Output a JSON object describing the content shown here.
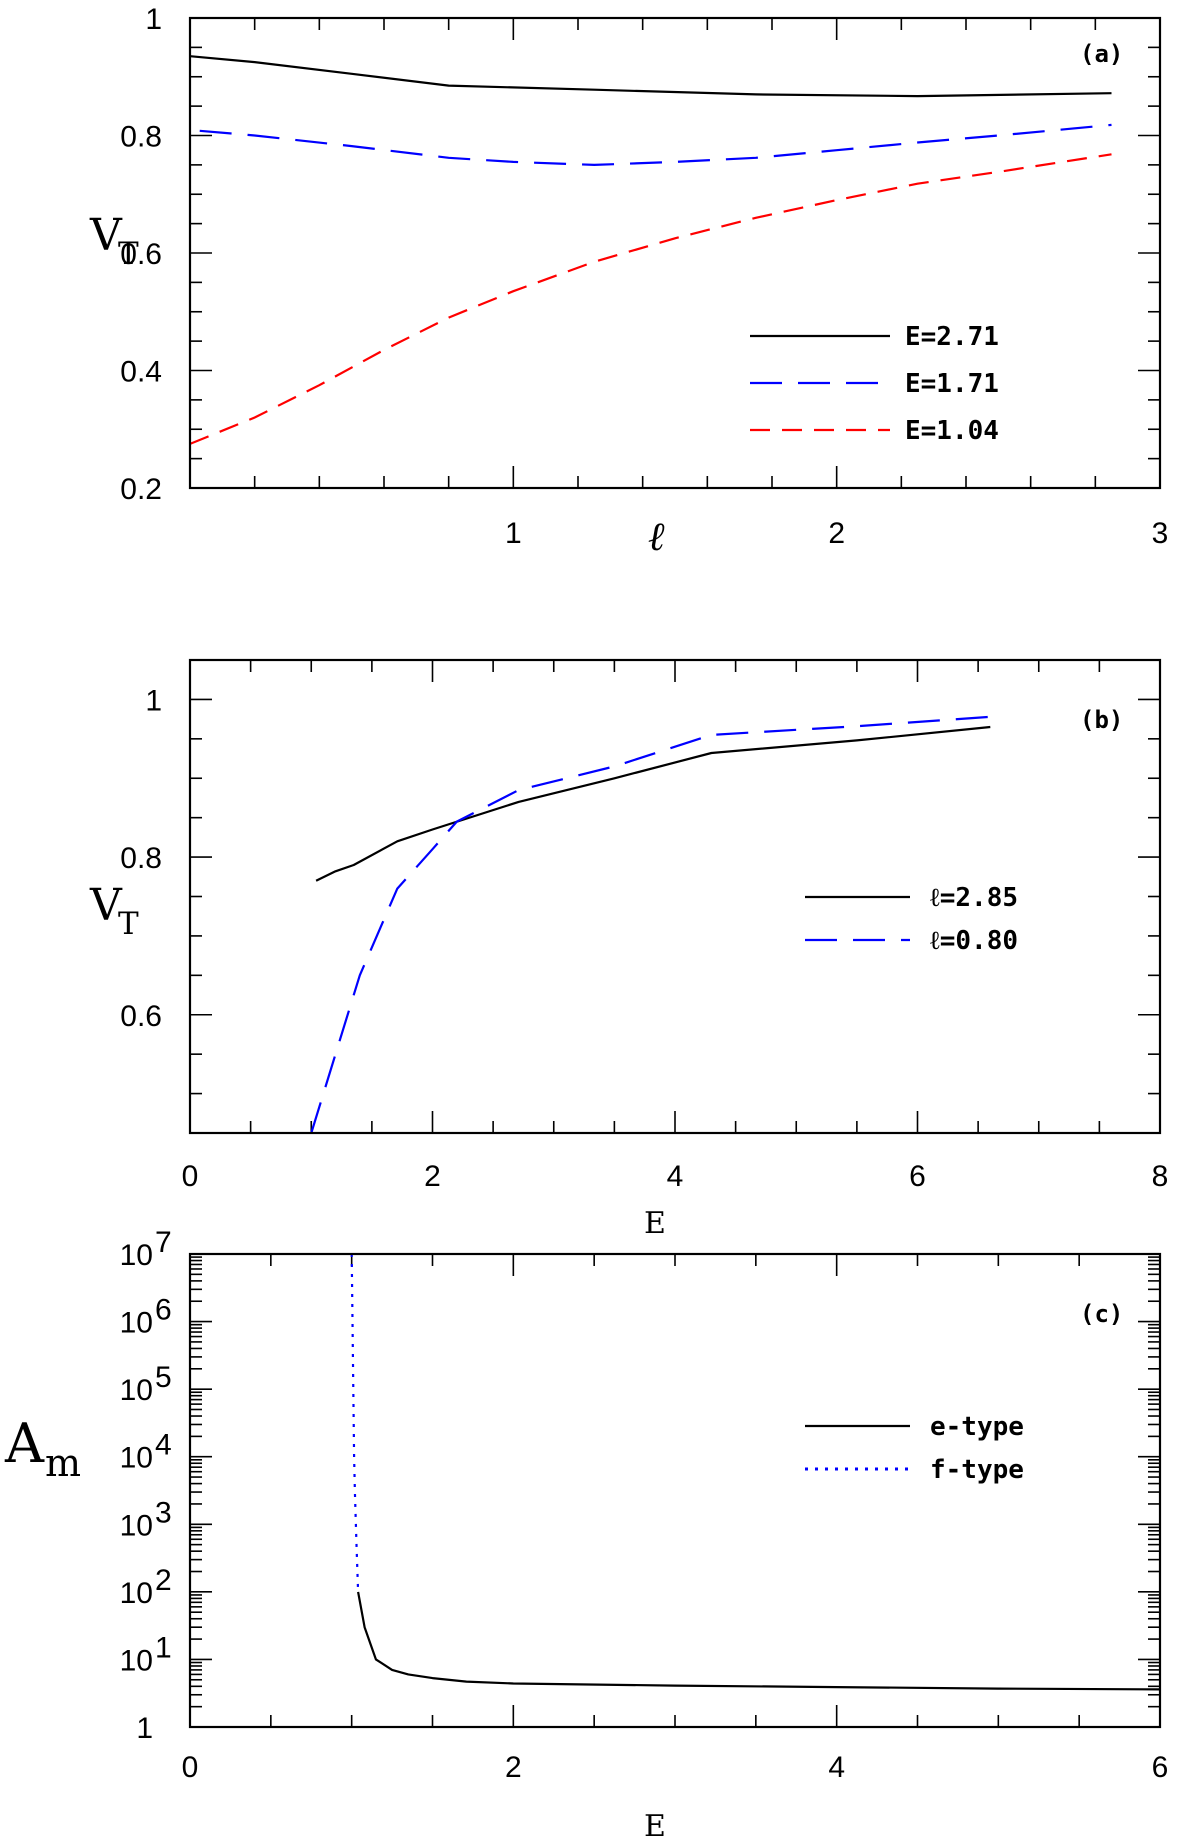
{
  "chart_data": [
    {
      "panel": "a",
      "type": "line",
      "panel_label": "(a)",
      "xlabel": "ℓ",
      "ylabel": "V",
      "ylabel_sub": "T",
      "xlim": [
        0,
        3
      ],
      "ylim": [
        0.2,
        1.0
      ],
      "xticks": [
        {
          "v": 1,
          "label": "1"
        },
        {
          "v": 2,
          "label": "2"
        },
        {
          "v": 3,
          "label": "3"
        }
      ],
      "yticks": [
        {
          "v": 0.2,
          "label": "0.2"
        },
        {
          "v": 0.4,
          "label": "0.4"
        },
        {
          "v": 0.6,
          "label": "0.6"
        },
        {
          "v": 0.8,
          "label": "0.8"
        },
        {
          "v": 1.0,
          "label": "1"
        }
      ],
      "legend_position": "lower-right",
      "series": [
        {
          "name": "E=2.71",
          "color": "#000000",
          "style": "solid",
          "x": [
            0,
            0.2,
            0.5,
            0.8,
            1.25,
            1.75,
            2.25,
            2.85
          ],
          "y": [
            0.935,
            0.925,
            0.905,
            0.885,
            0.878,
            0.87,
            0.867,
            0.872
          ]
        },
        {
          "name": "E=1.71",
          "color": "#0000ff",
          "style": "dash-long",
          "x": [
            0.03,
            0.2,
            0.5,
            0.8,
            1.0,
            1.25,
            1.5,
            1.75,
            2.0,
            2.25,
            2.5,
            2.85
          ],
          "y": [
            0.808,
            0.8,
            0.782,
            0.762,
            0.755,
            0.75,
            0.755,
            0.762,
            0.775,
            0.788,
            0.8,
            0.818
          ]
        },
        {
          "name": "E=1.04",
          "color": "#ff0000",
          "style": "dash-short",
          "x": [
            0,
            0.2,
            0.4,
            0.6,
            0.8,
            1.0,
            1.25,
            1.5,
            1.75,
            2.0,
            2.25,
            2.5,
            2.85
          ],
          "y": [
            0.275,
            0.32,
            0.375,
            0.435,
            0.49,
            0.535,
            0.585,
            0.625,
            0.66,
            0.69,
            0.718,
            0.738,
            0.768
          ]
        }
      ]
    },
    {
      "panel": "b",
      "type": "line",
      "panel_label": "(b)",
      "xlabel": "E",
      "ylabel": "V",
      "ylabel_sub": "T",
      "xlim": [
        0,
        8
      ],
      "ylim": [
        0.45,
        1.05
      ],
      "xticks": [
        {
          "v": 0,
          "label": "0"
        },
        {
          "v": 2,
          "label": "2"
        },
        {
          "v": 4,
          "label": "4"
        },
        {
          "v": 6,
          "label": "6"
        },
        {
          "v": 8,
          "label": "8"
        }
      ],
      "yticks": [
        {
          "v": 0.6,
          "label": "0.6"
        },
        {
          "v": 0.8,
          "label": "0.8"
        },
        {
          "v": 1.0,
          "label": "1"
        }
      ],
      "legend_position": "right",
      "series": [
        {
          "name": "ℓ=2.85",
          "color": "#000000",
          "style": "solid",
          "x": [
            1.04,
            1.2,
            1.35,
            1.71,
            2.0,
            2.71,
            3.5,
            4.3,
            5.5,
            6.6
          ],
          "y": [
            0.77,
            0.782,
            0.79,
            0.82,
            0.835,
            0.87,
            0.9,
            0.932,
            0.948,
            0.965
          ]
        },
        {
          "name": "ℓ=0.80",
          "color": "#0000ff",
          "style": "dash-long",
          "x": [
            1.0,
            1.2,
            1.4,
            1.71,
            2.0,
            2.2,
            2.71,
            3.5,
            4.3,
            5.5,
            6.6
          ],
          "y": [
            0.45,
            0.55,
            0.65,
            0.76,
            0.81,
            0.845,
            0.885,
            0.915,
            0.955,
            0.966,
            0.978
          ]
        }
      ]
    },
    {
      "panel": "c",
      "type": "line",
      "panel_label": "(c)",
      "xlabel": "E",
      "ylabel": "A",
      "ylabel_sub": "m",
      "xlim": [
        0,
        6
      ],
      "yscale": "log",
      "ylim": [
        1,
        10000000
      ],
      "xticks": [
        {
          "v": 0,
          "label": "0"
        },
        {
          "v": 2,
          "label": "2"
        },
        {
          "v": 4,
          "label": "4"
        },
        {
          "v": 6,
          "label": "6"
        }
      ],
      "yticks": [
        {
          "exp": 0,
          "base": "1",
          "sup": ""
        },
        {
          "exp": 1,
          "base": "10",
          "sup": "1"
        },
        {
          "exp": 2,
          "base": "10",
          "sup": "2"
        },
        {
          "exp": 3,
          "base": "10",
          "sup": "3"
        },
        {
          "exp": 4,
          "base": "10",
          "sup": "4"
        },
        {
          "exp": 5,
          "base": "10",
          "sup": "5"
        },
        {
          "exp": 6,
          "base": "10",
          "sup": "6"
        },
        {
          "exp": 7,
          "base": "10",
          "sup": "7"
        }
      ],
      "legend_position": "right",
      "series": [
        {
          "name": "e-type",
          "color": "#000000",
          "style": "solid",
          "x": [
            1.04,
            1.08,
            1.15,
            1.25,
            1.35,
            1.5,
            1.71,
            2.0,
            3.0,
            4.0,
            5.0,
            6.0
          ],
          "y": [
            100,
            30,
            10,
            7,
            6,
            5.3,
            4.7,
            4.4,
            4.1,
            3.9,
            3.7,
            3.6
          ]
        },
        {
          "name": "f-type",
          "color": "#0000ff",
          "style": "dotted",
          "x": [
            1.0,
            1.005,
            1.01,
            1.015,
            1.02,
            1.03,
            1.04
          ],
          "y": [
            10000000,
            1000000,
            100000,
            10000,
            3000,
            500,
            100
          ]
        }
      ]
    }
  ]
}
